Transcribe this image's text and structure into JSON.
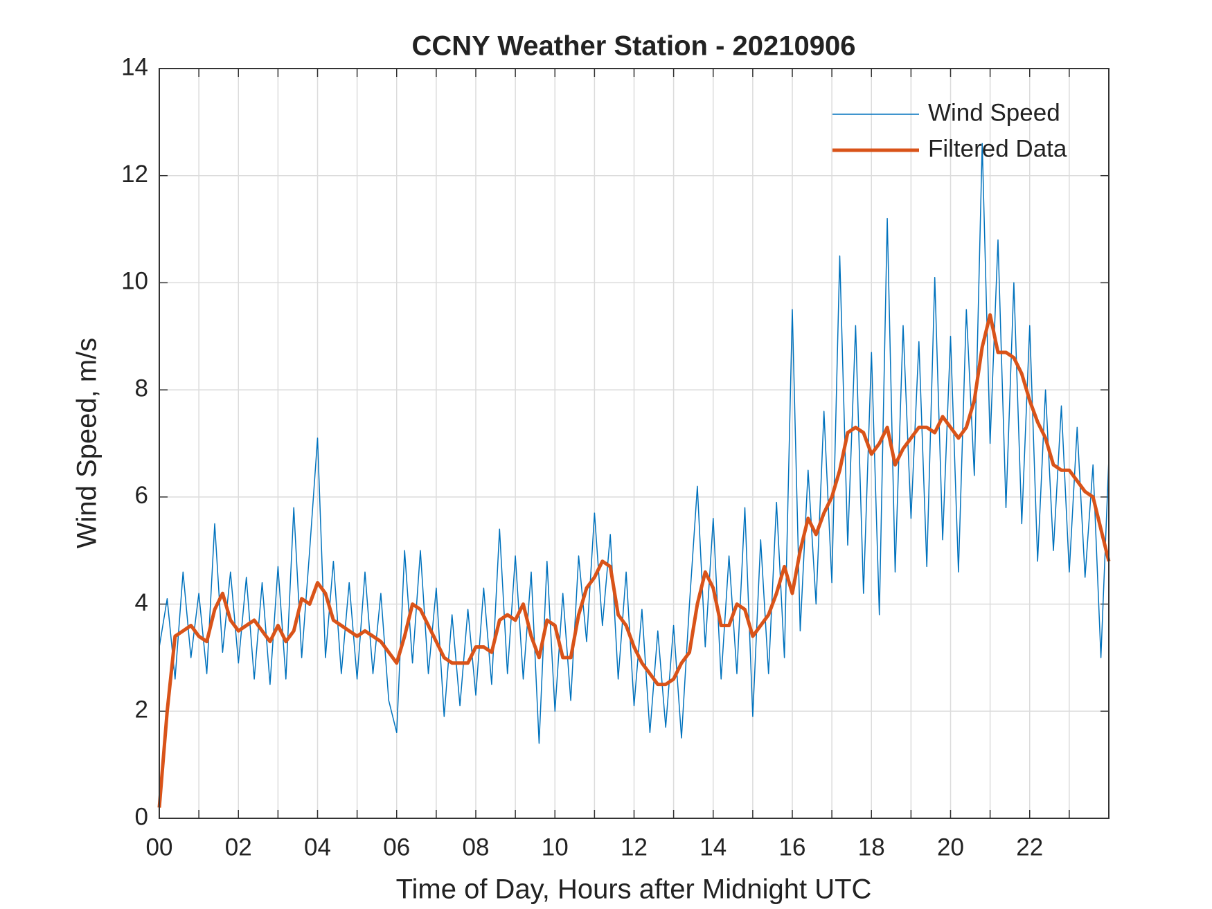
{
  "chart_data": {
    "type": "line",
    "title": "CCNY Weather Station - 20210906",
    "xlabel": "Time of Day, Hours after Midnight UTC",
    "ylabel": "Wind Speed, m/s",
    "x": [
      0,
      0.2,
      0.4,
      0.6,
      0.8,
      1,
      1.2,
      1.4,
      1.6,
      1.8,
      2,
      2.2,
      2.4,
      2.6,
      2.8,
      3,
      3.2,
      3.4,
      3.6,
      3.8,
      4,
      4.2,
      4.4,
      4.6,
      4.8,
      5,
      5.2,
      5.4,
      5.6,
      5.8,
      6,
      6.2,
      6.4,
      6.6,
      6.8,
      7,
      7.2,
      7.4,
      7.6,
      7.8,
      8,
      8.2,
      8.4,
      8.6,
      8.8,
      9,
      9.2,
      9.4,
      9.6,
      9.8,
      10,
      10.2,
      10.4,
      10.6,
      10.8,
      11,
      11.2,
      11.4,
      11.6,
      11.8,
      12,
      12.2,
      12.4,
      12.6,
      12.8,
      13,
      13.2,
      13.4,
      13.6,
      13.8,
      14,
      14.2,
      14.4,
      14.6,
      14.8,
      15,
      15.2,
      15.4,
      15.6,
      15.8,
      16,
      16.2,
      16.4,
      16.6,
      16.8,
      17,
      17.2,
      17.4,
      17.6,
      17.8,
      18,
      18.2,
      18.4,
      18.6,
      18.8,
      19,
      19.2,
      19.4,
      19.6,
      19.8,
      20,
      20.2,
      20.4,
      20.6,
      20.8,
      21,
      21.2,
      21.4,
      21.6,
      21.8,
      22,
      22.2,
      22.4,
      22.6,
      22.8,
      23,
      23.2,
      23.4,
      23.6,
      23.8,
      24
    ],
    "series": [
      {
        "name": "Wind Speed",
        "color": "#0072BD",
        "width": 1.5,
        "values": [
          3.2,
          4.1,
          2.6,
          4.6,
          3.0,
          4.2,
          2.7,
          5.5,
          3.1,
          4.6,
          2.9,
          4.5,
          2.6,
          4.4,
          2.5,
          4.7,
          2.6,
          5.8,
          3.0,
          5.0,
          7.1,
          3.0,
          4.8,
          2.7,
          4.4,
          2.6,
          4.6,
          2.7,
          4.2,
          2.2,
          1.6,
          5.0,
          2.9,
          5.0,
          2.7,
          4.3,
          1.9,
          3.8,
          2.1,
          3.9,
          2.3,
          4.3,
          2.5,
          5.4,
          2.7,
          4.9,
          2.6,
          4.6,
          1.4,
          4.8,
          2.0,
          4.2,
          2.2,
          4.9,
          3.3,
          5.7,
          3.6,
          5.3,
          2.6,
          4.6,
          2.1,
          3.9,
          1.6,
          3.5,
          1.7,
          3.6,
          1.5,
          4.0,
          6.2,
          3.2,
          5.6,
          2.6,
          4.9,
          2.7,
          5.8,
          1.9,
          5.2,
          2.7,
          5.9,
          3.0,
          9.5,
          3.5,
          6.5,
          4.0,
          7.6,
          4.4,
          10.5,
          5.1,
          9.2,
          4.2,
          8.7,
          3.8,
          11.2,
          4.6,
          9.2,
          5.6,
          8.9,
          4.7,
          10.1,
          5.2,
          9.0,
          4.6,
          9.5,
          6.4,
          12.6,
          7.0,
          10.8,
          5.8,
          10.0,
          5.5,
          9.2,
          4.8,
          8.0,
          5.0,
          7.7,
          4.6,
          7.3,
          4.5,
          6.6,
          3.0,
          6.7
        ]
      },
      {
        "name": "Filtered Data",
        "color": "#D95319",
        "width": 5,
        "values": [
          0.2,
          2.0,
          3.4,
          3.5,
          3.6,
          3.4,
          3.3,
          3.9,
          4.2,
          3.7,
          3.5,
          3.6,
          3.7,
          3.5,
          3.3,
          3.6,
          3.3,
          3.5,
          4.1,
          4.0,
          4.4,
          4.2,
          3.7,
          3.6,
          3.5,
          3.4,
          3.5,
          3.4,
          3.3,
          3.1,
          2.9,
          3.4,
          4.0,
          3.9,
          3.6,
          3.3,
          3.0,
          2.9,
          2.9,
          2.9,
          3.2,
          3.2,
          3.1,
          3.7,
          3.8,
          3.7,
          4.0,
          3.4,
          3.0,
          3.7,
          3.6,
          3.0,
          3.0,
          3.8,
          4.3,
          4.5,
          4.8,
          4.7,
          3.8,
          3.6,
          3.2,
          2.9,
          2.7,
          2.5,
          2.5,
          2.6,
          2.9,
          3.1,
          4.0,
          4.6,
          4.3,
          3.6,
          3.6,
          4.0,
          3.9,
          3.4,
          3.6,
          3.8,
          4.2,
          4.7,
          4.2,
          5.0,
          5.6,
          5.3,
          5.7,
          6.0,
          6.5,
          7.2,
          7.3,
          7.2,
          6.8,
          7.0,
          7.3,
          6.6,
          6.9,
          7.1,
          7.3,
          7.3,
          7.2,
          7.5,
          7.3,
          7.1,
          7.3,
          7.8,
          8.8,
          9.4,
          8.7,
          8.7,
          8.6,
          8.3,
          7.8,
          7.4,
          7.1,
          6.6,
          6.5,
          6.5,
          6.3,
          6.1,
          6.0,
          5.4,
          4.8
        ]
      }
    ],
    "xlim": [
      0,
      24
    ],
    "ylim": [
      0,
      14
    ],
    "xticks": [
      {
        "value": 0,
        "label": "00"
      },
      {
        "value": 2,
        "label": "02"
      },
      {
        "value": 4,
        "label": "04"
      },
      {
        "value": 6,
        "label": "06"
      },
      {
        "value": 8,
        "label": "08"
      },
      {
        "value": 10,
        "label": "10"
      },
      {
        "value": 12,
        "label": "12"
      },
      {
        "value": 14,
        "label": "14"
      },
      {
        "value": 16,
        "label": "16"
      },
      {
        "value": 18,
        "label": "18"
      },
      {
        "value": 20,
        "label": "20"
      },
      {
        "value": 22,
        "label": "22"
      }
    ],
    "minor_xticks": [
      1,
      3,
      5,
      7,
      9,
      11,
      13,
      15,
      17,
      19,
      21,
      23
    ],
    "yticks": [
      0,
      2,
      4,
      6,
      8,
      10,
      12,
      14
    ],
    "grid": true,
    "legend": "upper-right"
  }
}
